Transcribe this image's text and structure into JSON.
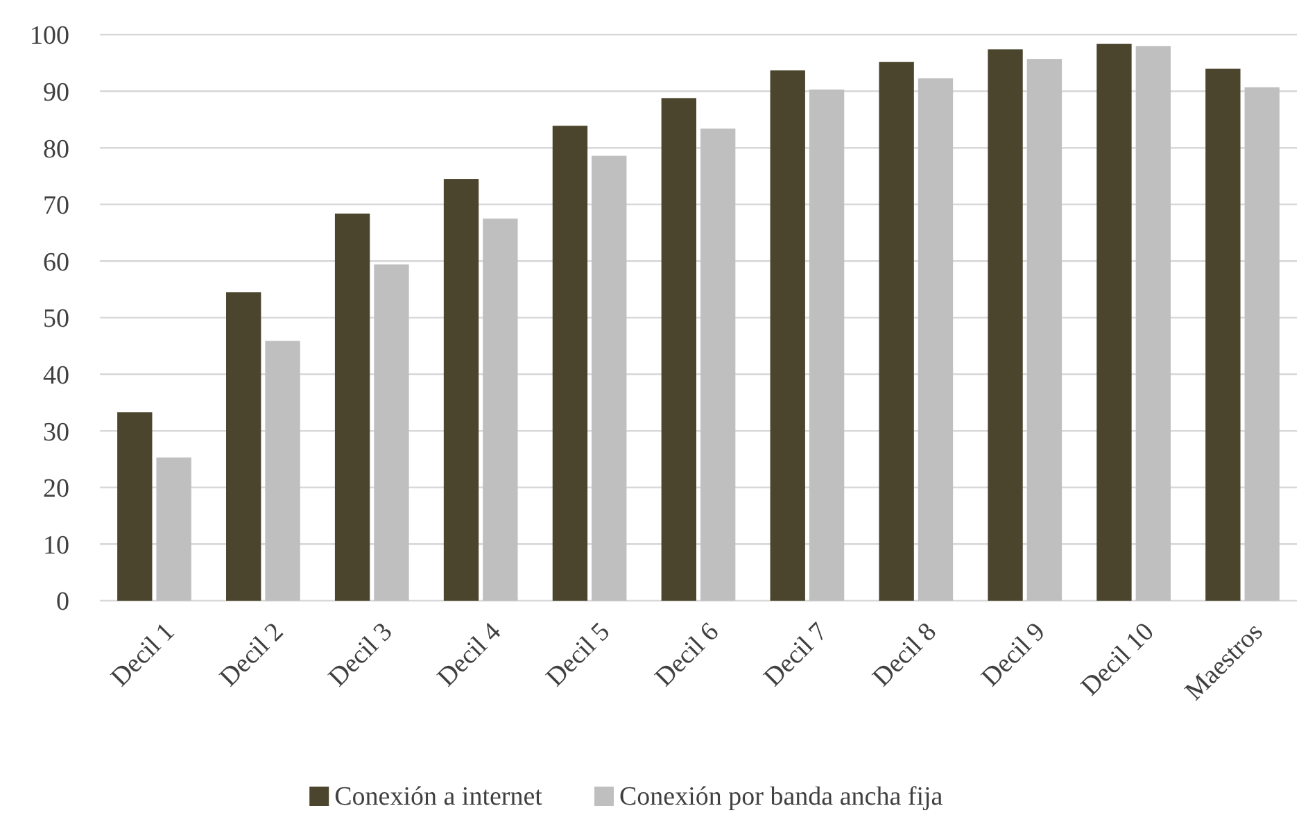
{
  "chart_data": {
    "type": "bar",
    "categories": [
      "Decil 1",
      "Decil 2",
      "Decil 3",
      "Decil 4",
      "Decil 5",
      "Decil 6",
      "Decil 7",
      "Decil 8",
      "Decil 9",
      "Decil 10",
      "Maestros"
    ],
    "series": [
      {
        "name": "Conexión a internet",
        "color": "#4a452c",
        "values": [
          33.3,
          54.5,
          68.4,
          74.5,
          83.9,
          88.8,
          93.7,
          95.2,
          97.4,
          98.4,
          94.0
        ]
      },
      {
        "name": "Conexión por banda ancha fija",
        "color": "#bfbfbf",
        "values": [
          25.3,
          45.9,
          59.4,
          67.5,
          78.6,
          83.4,
          90.3,
          92.3,
          95.7,
          98.0,
          90.7
        ]
      }
    ],
    "ylim": [
      0,
      100
    ],
    "yticks": [
      0,
      10,
      20,
      30,
      40,
      50,
      60,
      70,
      80,
      90,
      100
    ],
    "grid": "y",
    "legend": "bottom"
  }
}
